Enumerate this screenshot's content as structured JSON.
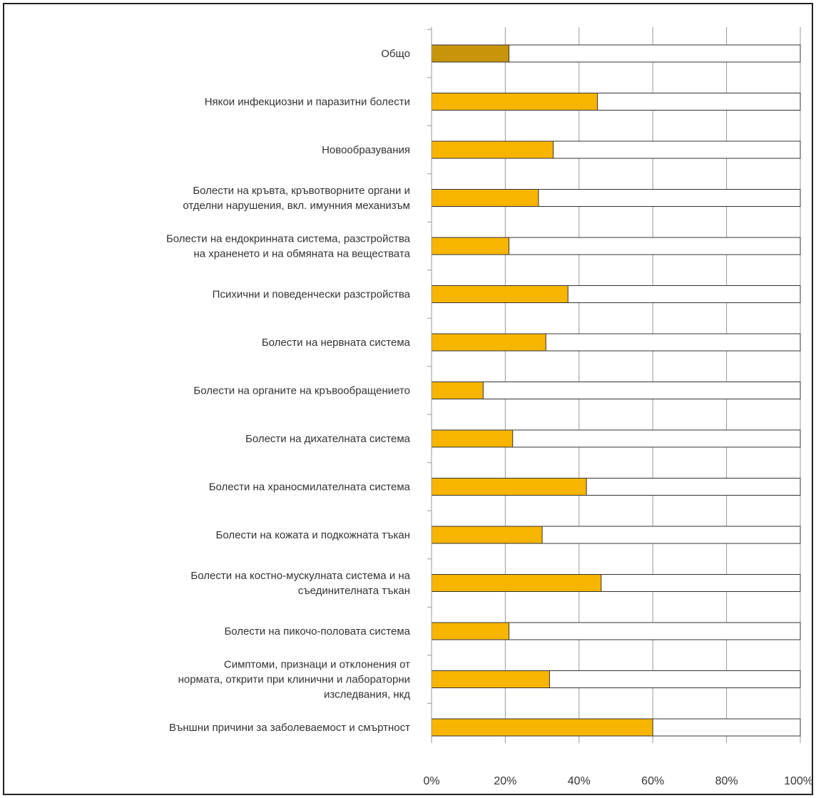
{
  "chart_data": {
    "type": "bar",
    "orientation": "horizontal",
    "stacked_to_100": true,
    "categories": [
      [
        "Общо"
      ],
      [
        "Някои инфекциозни и паразитни болести"
      ],
      [
        "Новообразувания"
      ],
      [
        "Болести на кръвта, кръвотворните органи и",
        "отделни нарушения, вкл. имунния механизъм"
      ],
      [
        "Болести на ендокринната система, разстройства",
        "на храненето и на обмяната на веществата"
      ],
      [
        "Психични и поведенчески разстройства"
      ],
      [
        "Болести на нервната система"
      ],
      [
        "Болести на органите на кръвообращението"
      ],
      [
        "Болести на дихателната система"
      ],
      [
        "Болести на храносмилателната система"
      ],
      [
        "Болести на кожата и подкожната тъкан"
      ],
      [
        "Болести на костно-мускулната система и на",
        "съединителната тъкан"
      ],
      [
        "Болести на пикочо-половата система"
      ],
      [
        "Симптоми, признаци и отклонения от",
        "нормата, открити при клинични и лабораторни",
        "изследвания, нкд"
      ],
      [
        "Външни причини за заболеваемост и смъртност"
      ]
    ],
    "values": [
      21,
      45,
      33,
      29,
      21,
      37,
      31,
      14,
      22,
      42,
      30,
      46,
      21,
      32,
      60
    ],
    "xlim": [
      0,
      100
    ],
    "x_ticks": [
      "0%",
      "20%",
      "40%",
      "60%",
      "80%",
      "100%"
    ],
    "grid": "vertical",
    "colors": {
      "first_bar": "#C8950A",
      "bar": "#F7B500",
      "remainder": "#FFFFFF",
      "outline": "#333333",
      "grid": "#999999"
    }
  }
}
